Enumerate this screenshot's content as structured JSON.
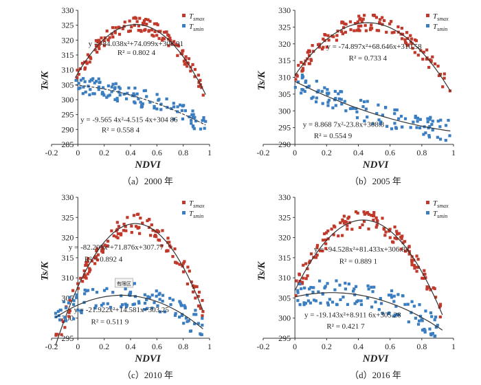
{
  "chart_data": [
    {
      "type": "scatter",
      "caption": "（a）2000 年",
      "xlabel": "NDVI",
      "ylabel": "Ts/K",
      "xlim": [
        -0.2,
        1.0
      ],
      "ylim": [
        285,
        330
      ],
      "xticks": [
        "-0.2",
        "0",
        "0.2",
        "0.4",
        "0.6",
        "0.8",
        "1"
      ],
      "yticks": [
        "285",
        "290",
        "295",
        "300",
        "305",
        "310",
        "315",
        "320",
        "325",
        "330"
      ],
      "legend": "top-right",
      "series": [
        {
          "name": "Tsmax",
          "color": "#c0392b",
          "fit": [
            -84.038,
            74.099,
            308.91
          ],
          "fit_range": [
            -0.02,
            0.97
          ],
          "fit_style": "solid"
        },
        {
          "name": "Tsmin",
          "color": "#3a7dc0",
          "fit": [
            -9.565,
            -4.515,
            304.86
          ],
          "fit_range": [
            -0.02,
            0.97
          ],
          "fit_style": "dashed"
        }
      ],
      "annotations": [
        {
          "text": "y = -84.038x²+74.099x+308.91",
          "x": 0.08,
          "y": 318
        },
        {
          "text": "R² = 0.802 4",
          "x": 0.3,
          "y": 315
        },
        {
          "text": "y = -9.565 4x²-4.515 4x+304 86",
          "x": 0.02,
          "y": 292.5
        },
        {
          "text": "R² = 0.558 4",
          "x": 0.18,
          "y": 289
        }
      ]
    },
    {
      "type": "scatter",
      "caption": "（b）2005 年",
      "xlabel": "NDVI",
      "ylabel": "Ts/K",
      "xlim": [
        -0.2,
        1.0
      ],
      "ylim": [
        290,
        330
      ],
      "xticks": [
        "-0.2",
        "0",
        "0.2",
        "0.4",
        "0.6",
        "0.8",
        "1"
      ],
      "yticks": [
        "290",
        "295",
        "300",
        "305",
        "310",
        "315",
        "320",
        "325",
        "330"
      ],
      "legend": "top-right",
      "series": [
        {
          "name": "Tsmax",
          "color": "#c0392b",
          "fit": [
            -74.897,
            68.646,
            310.58
          ],
          "fit_range": [
            0.0,
            0.98
          ],
          "fit_style": "solid"
        },
        {
          "name": "Tsmin",
          "color": "#3a7dc0",
          "fit": [
            8.8687,
            -23.8,
            308.8
          ],
          "fit_range": [
            0.0,
            0.98
          ],
          "fit_style": "solid"
        }
      ],
      "annotations": [
        {
          "text": "y = -74.897x²+68.646x+310.58",
          "x": 0.2,
          "y": 318.5
        },
        {
          "text": "R² = 0.733 4",
          "x": 0.34,
          "y": 315
        },
        {
          "text": "y = 8.868 7x²-23.8x+308.8",
          "x": 0.05,
          "y": 295.2
        },
        {
          "text": "R² = 0.554 9",
          "x": 0.12,
          "y": 291.8
        }
      ]
    },
    {
      "type": "scatter",
      "caption": "（c）2010 年",
      "xlabel": "NDVI",
      "ylabel": "Ts/K",
      "xlim": [
        -0.2,
        1.0
      ],
      "ylim": [
        295,
        330
      ],
      "xticks": [
        "-0.2",
        "0",
        "0.2",
        "0.4",
        "0.6",
        "0.8",
        "1"
      ],
      "yticks": [
        "295",
        "300",
        "305",
        "310",
        "315",
        "320",
        "325",
        "330"
      ],
      "legend": "top-right",
      "series": [
        {
          "name": "Tsmax",
          "color": "#c0392b",
          "fit": [
            -82.209,
            71.876,
            307.77
          ],
          "fit_range": [
            -0.17,
            0.95
          ],
          "fit_style": "solid"
        },
        {
          "name": "Tsmin",
          "color": "#3a7dc0",
          "fit": [
            -21.922,
            14.581,
            303.25
          ],
          "fit_range": [
            -0.17,
            0.95
          ],
          "fit_style": "solid"
        }
      ],
      "annotations": [
        {
          "text": "y = -82.209x²+71.876x+307.77",
          "x": -0.07,
          "y": 317
        },
        {
          "text": "R² = 0.892 4",
          "x": 0.05,
          "y": 314
        },
        {
          "text": "y = -21.922x²+14.581x+303.25",
          "x": -0.03,
          "y": 301.5
        },
        {
          "text": "R² = 0.511 9",
          "x": 0.1,
          "y": 298.5
        }
      ],
      "stamp": "有限区"
    },
    {
      "type": "scatter",
      "caption": "（d）2016 年",
      "xlabel": "NDVI",
      "ylabel": "Ts/K",
      "xlim": [
        -0.2,
        1.0
      ],
      "ylim": [
        295,
        330
      ],
      "xticks": [
        "-0.2",
        "0",
        "0.2",
        "0.4",
        "0.6",
        "0.8",
        "1"
      ],
      "yticks": [
        "295",
        "300",
        "305",
        "310",
        "315",
        "320",
        "325",
        "330"
      ],
      "legend": "top-right",
      "series": [
        {
          "name": "Tsmax",
          "color": "#c0392b",
          "fit": [
            -94.528,
            81.433,
            306.83
          ],
          "fit_range": [
            0.0,
            0.93
          ],
          "fit_style": "solid"
        },
        {
          "name": "Tsmin",
          "color": "#3a7dc0",
          "fit": [
            -19.143,
            8.9116,
            305.28
          ],
          "fit_range": [
            0.0,
            0.93
          ],
          "fit_style": "solid"
        }
      ],
      "annotations": [
        {
          "text": "y = -94.528x²+81.433x+306.83",
          "x": 0.12,
          "y": 316.5
        },
        {
          "text": "R² = 0.889 1",
          "x": 0.28,
          "y": 313.5
        },
        {
          "text": "y = -19.143x²+8.911 6x+305.28",
          "x": 0.06,
          "y": 300.2
        },
        {
          "text": "R² = 0.421 7",
          "x": 0.2,
          "y": 297.4
        }
      ]
    }
  ]
}
